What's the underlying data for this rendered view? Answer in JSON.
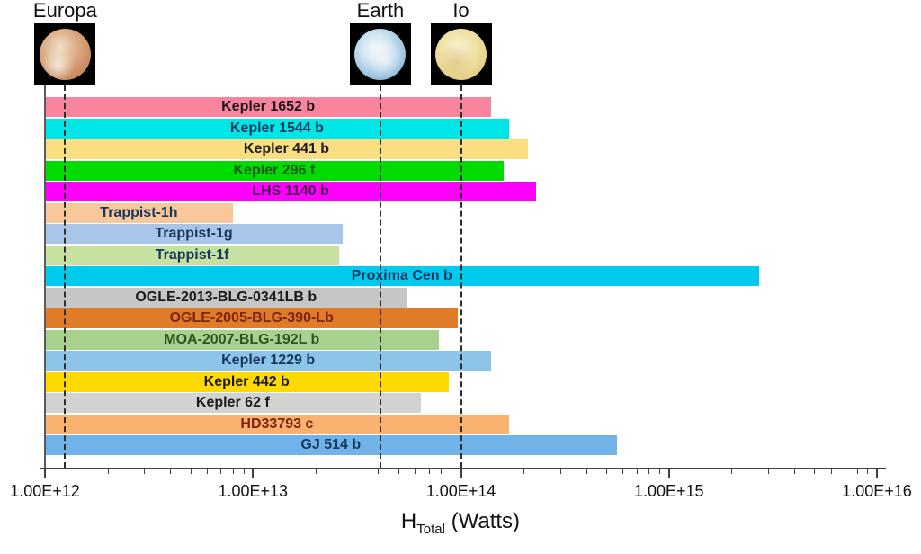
{
  "chart_data": {
    "type": "bar",
    "orientation": "horizontal",
    "x_scale": "log",
    "grid": false,
    "legend": false,
    "x_axis": {
      "label_main": "H",
      "label_sub": "Total",
      "label_rest": " (Watts)",
      "min": 1000000000000.0,
      "max": 1e+16,
      "tick_values": [
        1000000000000.0,
        10000000000000.0,
        100000000000000.0,
        1000000000000000.0,
        1e+16
      ],
      "tick_labels": [
        "1.00E+12",
        "1.00E+13",
        "1.00E+14",
        "1.00E+15",
        "1.00E+16"
      ]
    },
    "bars": [
      {
        "label": "Kepler 1652 b",
        "value_watts": 140000000000000.0,
        "color": "#F9849E",
        "label_color": "#1a1a1a"
      },
      {
        "label": "Kepler 1544 b",
        "value_watts": 170000000000000.0,
        "color": "#00E6E6",
        "label_color": "#17365D"
      },
      {
        "label": "Kepler 441 b",
        "value_watts": 210000000000000.0,
        "color": "#FADF82",
        "label_color": "#1a1a1a"
      },
      {
        "label": "Kepler 296 f",
        "value_watts": 160000000000000.0,
        "color": "#00DC00",
        "label_color": "#155915"
      },
      {
        "label": "LHS 1140 b",
        "value_watts": 230000000000000.0,
        "color": "#FF00FF",
        "label_color": "#4A1652"
      },
      {
        "label": "Trappist-1h",
        "value_watts": 8000000000000.0,
        "color": "#FAC79B",
        "label_color": "#17365D"
      },
      {
        "label": "Trappist-1g",
        "value_watts": 27000000000000.0,
        "color": "#A9C6E8",
        "label_color": "#17365D"
      },
      {
        "label": "Trappist-1f",
        "value_watts": 26000000000000.0,
        "color": "#C6E1A0",
        "label_color": "#17365D"
      },
      {
        "label": "Proxima Cen b",
        "value_watts": 2700000000000000.0,
        "color": "#00CBEF",
        "label_color": "#17365D"
      },
      {
        "label": "OGLE-2013-BLG-0341LB b",
        "value_watts": 55000000000000.0,
        "color": "#C6C6C6",
        "label_color": "#1a1a1a"
      },
      {
        "label": "OGLE-2005-BLG-390-Lb",
        "value_watts": 97000000000000.0,
        "color": "#E07B28",
        "label_color": "#7B2413"
      },
      {
        "label": "MOA-2007-BLG-192L b",
        "value_watts": 78000000000000.0,
        "color": "#A9D18E",
        "label_color": "#2E5422"
      },
      {
        "label": "Kepler 1229 b",
        "value_watts": 140000000000000.0,
        "color": "#8DC5E8",
        "label_color": "#17365D"
      },
      {
        "label": "Kepler 442 b",
        "value_watts": 87000000000000.0,
        "color": "#FFD900",
        "label_color": "#1a1a1a"
      },
      {
        "label": "Kepler 62 f",
        "value_watts": 64000000000000.0,
        "color": "#D2D2D2",
        "label_color": "#1a1a1a"
      },
      {
        "label": "HD33793 c",
        "value_watts": 170000000000000.0,
        "color": "#FAB271",
        "label_color": "#7B2413"
      },
      {
        "label": "GJ 514 b",
        "value_watts": 560000000000000.0,
        "color": "#6FB3E8",
        "label_color": "#17365D"
      }
    ],
    "reference_lines": [
      {
        "label": "Europa",
        "value_watts": 1250000000000.0,
        "image": "europa"
      },
      {
        "label": "Earth",
        "value_watts": 41000000000000.0,
        "image": "earth"
      },
      {
        "label": "Io",
        "value_watts": 100000000000000.0,
        "image": "io"
      }
    ]
  }
}
